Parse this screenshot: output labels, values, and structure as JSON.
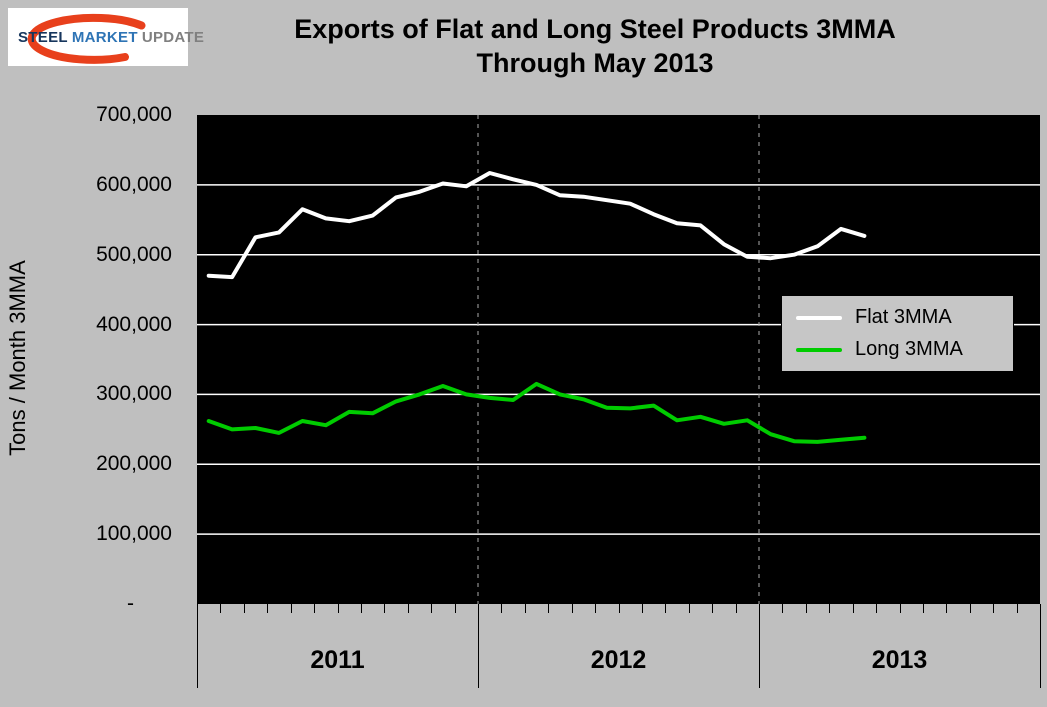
{
  "page_bg": "#bfbfbf",
  "header": {
    "title_line1": "Exports of Flat and Long Steel Products 3MMA",
    "title_line2": "Through May 2013"
  },
  "logo": {
    "word1": "STEEL",
    "word2": "MARKET",
    "word3": "UPDATE",
    "colors": {
      "word1": "#17365d",
      "word2": "#2e74b5",
      "word3": "#808080",
      "swoosh": "#e8401c"
    }
  },
  "chart_data": {
    "type": "line",
    "title": "Exports of Flat and Long Steel Products 3MMA Through May 2013",
    "xlabel": "",
    "ylabel": "Tons / Month 3MMA",
    "ylim": [
      0,
      700000
    ],
    "ytick_values": [
      700000,
      600000,
      500000,
      400000,
      300000,
      200000,
      100000,
      0
    ],
    "ytick_labels": [
      "700,000",
      "600,000",
      "500,000",
      "400,000",
      "300,000",
      "200,000",
      "100,000",
      "-"
    ],
    "x_slots": 36,
    "year_boundaries": [
      12,
      24
    ],
    "x_year_labels": [
      "2011",
      "2012",
      "2013"
    ],
    "grid": "horizontal solid white; dashed vertical at year boundaries",
    "legend_position": "right-middle inside plot",
    "plot_bg": "#000000",
    "series": [
      {
        "name": "Flat 3MMA",
        "color": "#ffffff",
        "values": [
          470000,
          468000,
          525000,
          532000,
          565000,
          552000,
          548000,
          556000,
          582000,
          590000,
          602000,
          598000,
          617000,
          608000,
          600000,
          585000,
          583000,
          578000,
          573000,
          558000,
          545000,
          542000,
          515000,
          497000,
          495000,
          500000,
          512000,
          537000,
          527000
        ]
      },
      {
        "name": "Long 3MMA",
        "color": "#00cc00",
        "values": [
          262000,
          250000,
          252000,
          245000,
          262000,
          256000,
          275000,
          273000,
          290000,
          300000,
          312000,
          300000,
          295000,
          292000,
          315000,
          300000,
          293000,
          281000,
          280000,
          284000,
          263000,
          268000,
          258000,
          263000,
          243000,
          233000,
          232000,
          235000,
          238000
        ]
      }
    ]
  }
}
